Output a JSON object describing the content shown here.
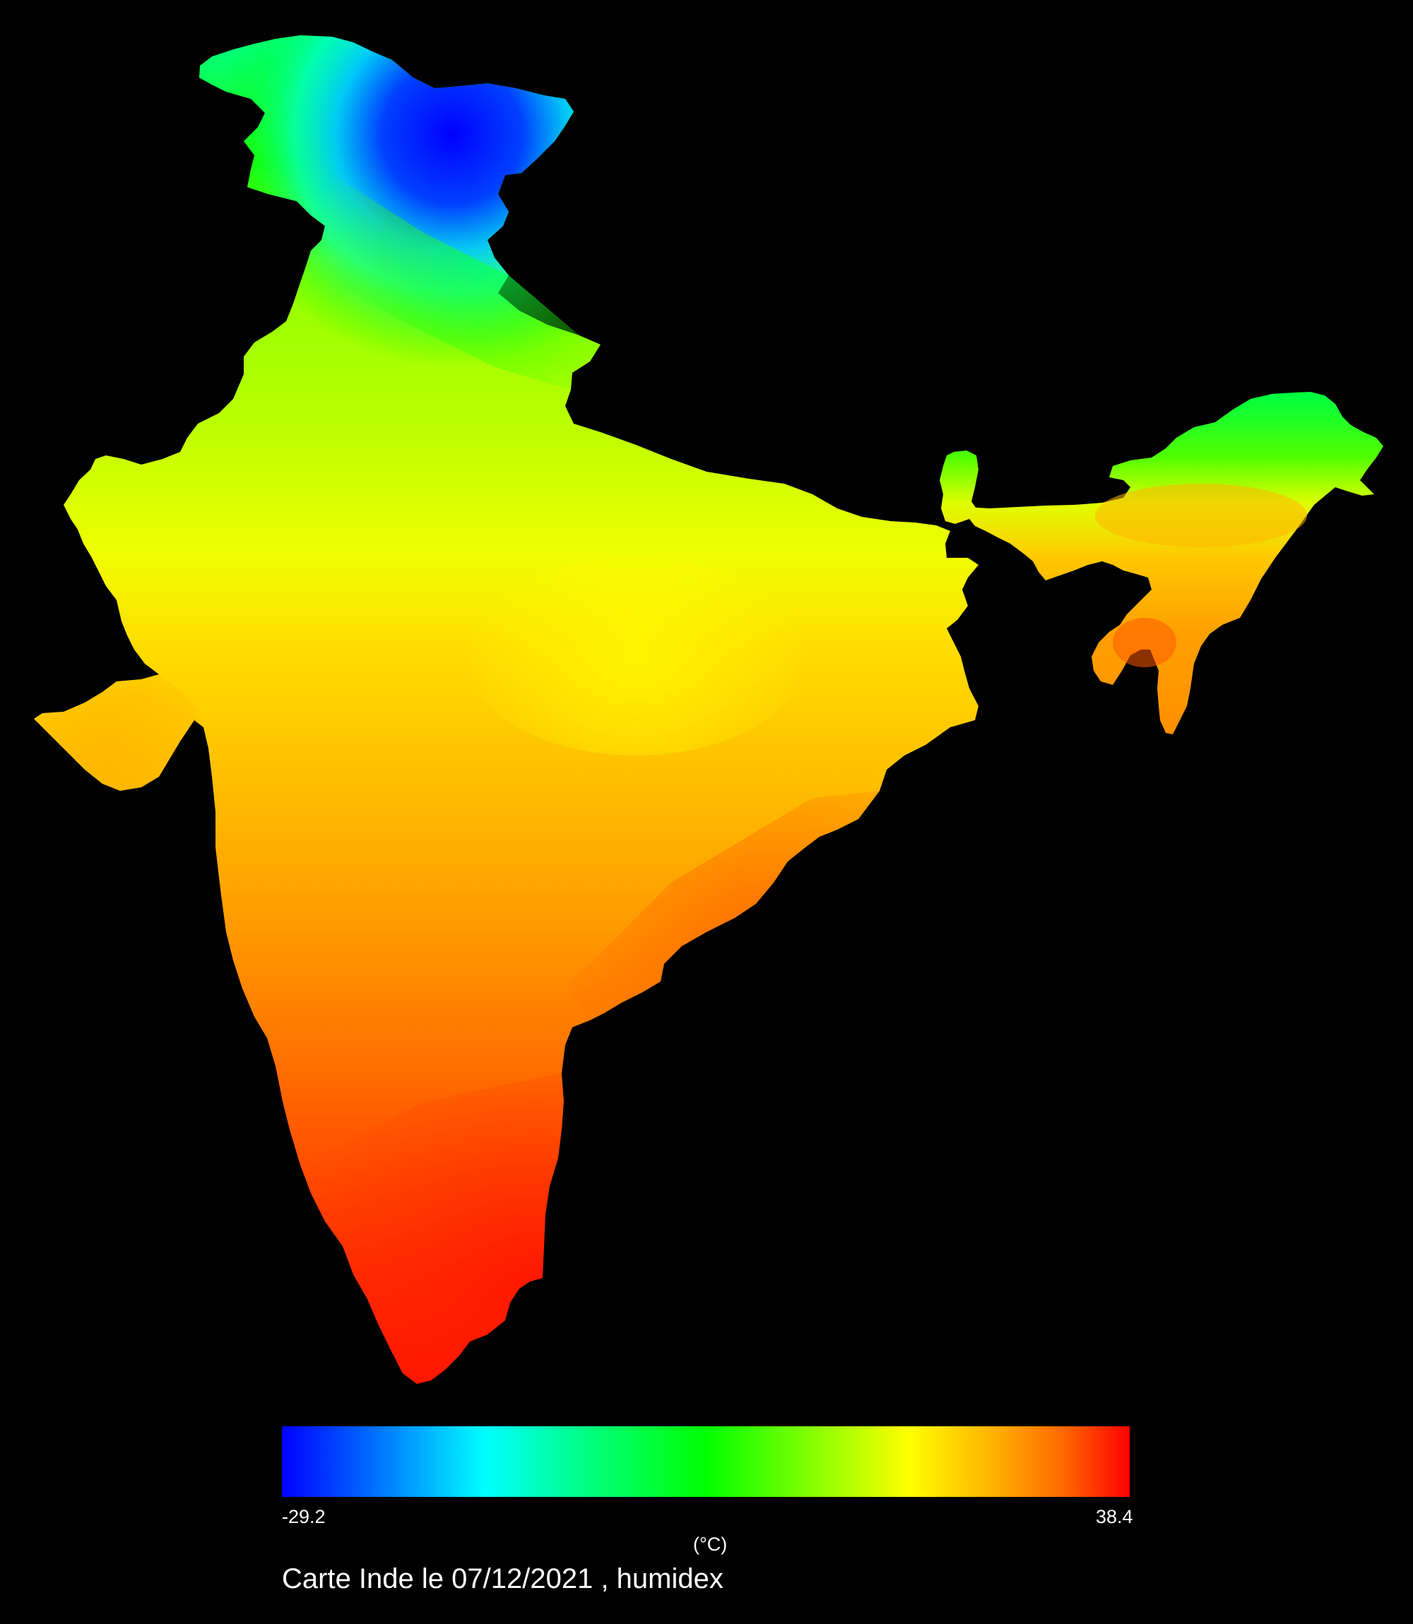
{
  "map": {
    "region": "Inde",
    "background": "#000000"
  },
  "colorbar": {
    "min_label": "-29.2",
    "max_label": "38.4",
    "unit_label": "(°C)",
    "min_value": -29.2,
    "max_value": 38.4,
    "colors": [
      "#0000ff",
      "#00ffff",
      "#00ff00",
      "#ffff00",
      "#ff0000"
    ]
  },
  "title": "Carte Inde le 07/12/2021 , humidex",
  "colors": {
    "text": "#ffffff",
    "background": "#000000"
  }
}
